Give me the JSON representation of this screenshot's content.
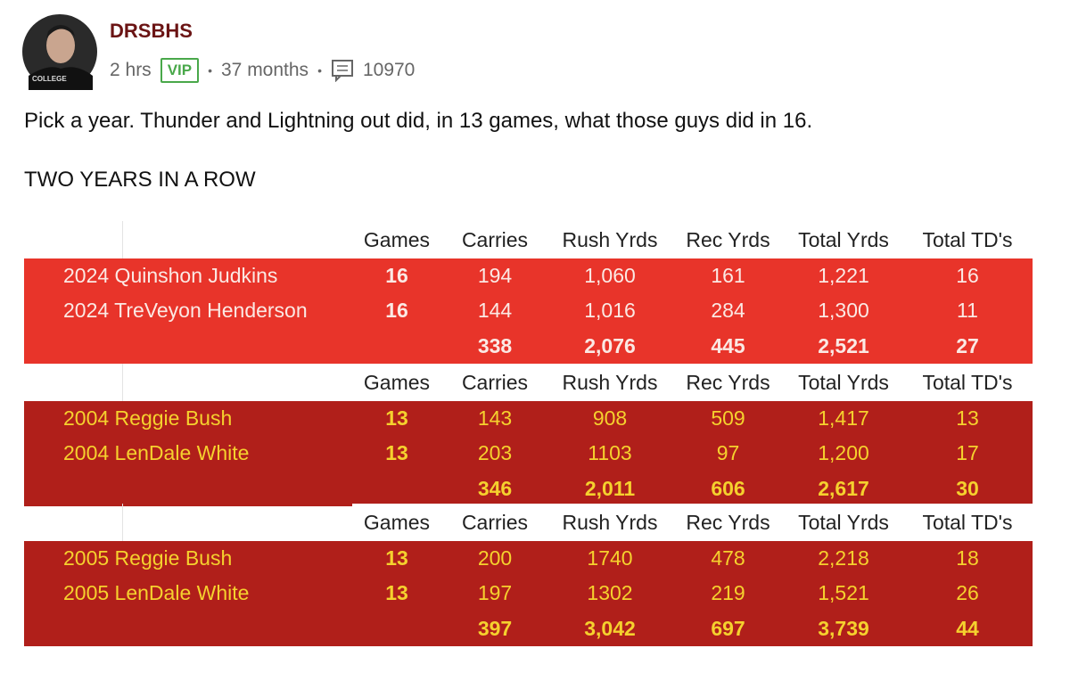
{
  "post": {
    "author": "DRSBHS",
    "time": "2 hrs",
    "badge": "VIP",
    "tenure": "37 months",
    "comment_count": "10970",
    "text": "Pick a year. Thunder and Lightning out did, in 13 games, what those guys did in 16.",
    "subtext": "TWO YEARS IN A ROW"
  },
  "table": {
    "sections": [
      {
        "header": [
          "Games",
          "Carries",
          "Rush Yrds",
          "Rec Yrds",
          "Total Yrds",
          "Total TD's"
        ],
        "rows": [
          [
            "2024 Quinshon Judkins",
            "16",
            "194",
            "1,060",
            "161",
            "1,221",
            "16"
          ],
          [
            "2024 TreVeyon Henderson",
            "16",
            "144",
            "1,016",
            "284",
            "1,300",
            "11"
          ]
        ],
        "totals": [
          "338",
          "2,076",
          "445",
          "2,521",
          "27"
        ]
      },
      {
        "header": [
          "Games",
          "Carries",
          "Rush Yrds",
          "Rec Yrds",
          "Total Yrds",
          "Total TD's"
        ],
        "rows": [
          [
            "2004 Reggie Bush",
            "13",
            "143",
            "908",
            "509",
            "1,417",
            "13"
          ],
          [
            "2004 LenDale White",
            "13",
            "203",
            "1103",
            "97",
            "1,200",
            "17"
          ]
        ],
        "totals": [
          "346",
          "2,011",
          "606",
          "2,617",
          "30"
        ]
      },
      {
        "header": [
          "Games",
          "Carries",
          "Rush Yrds",
          "Rec Yrds",
          "Total Yrds",
          "Total TD's"
        ],
        "rows": [
          [
            "2005 Reggie Bush",
            "13",
            "200",
            "1740",
            "478",
            "2,218",
            "18"
          ],
          [
            "2005 LenDale White",
            "13",
            "197",
            "1302",
            "219",
            "1,521",
            "26"
          ]
        ],
        "totals": [
          "397",
          "3,042",
          "697",
          "3,739",
          "44"
        ]
      }
    ]
  }
}
